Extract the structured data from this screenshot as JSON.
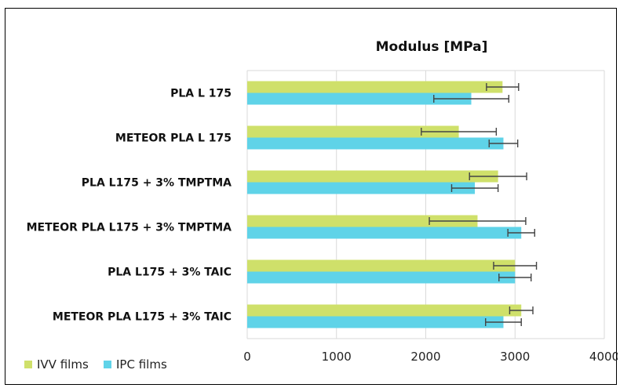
{
  "chart_data": {
    "type": "bar",
    "orientation": "horizontal",
    "title": "Modulus [MPa]",
    "categories": [
      "PLA L 175",
      "METEOR PLA L 175",
      "PLA L175 + 3% TMPTMA",
      "METEOR PLA L175 + 3% TMPTMA",
      "PLA L175 + 3% TAIC",
      "METEOR PLA L175 + 3% TAIC"
    ],
    "series": [
      {
        "name": "IVV films",
        "color": "#cfe06a",
        "values": [
          2860,
          2370,
          2810,
          2580,
          3000,
          3070
        ],
        "errors": [
          180,
          420,
          320,
          540,
          240,
          130
        ]
      },
      {
        "name": "IPC films",
        "color": "#5fd3e8",
        "values": [
          2510,
          2870,
          2550,
          3070,
          3000,
          2870
        ],
        "errors": [
          420,
          160,
          260,
          150,
          180,
          200
        ]
      }
    ],
    "xlim": [
      0,
      4000
    ],
    "xticks": [
      0,
      1000,
      2000,
      3000,
      4000
    ],
    "grid": "vertical",
    "legend": "bottom-left",
    "xlabel": "",
    "ylabel": ""
  }
}
